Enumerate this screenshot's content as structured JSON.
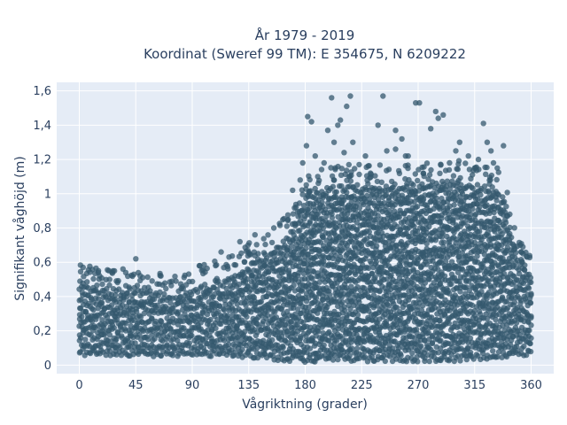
{
  "chart_data": {
    "type": "scatter",
    "title": "År 1979 - 2019",
    "subtitle": "Koordinat (Sweref 99 TM): E 354675, N 6209222",
    "xlabel": "Vågriktning (grader)",
    "ylabel": "Signifikant våghöjd (m)",
    "xlim": [
      -18,
      378
    ],
    "ylim": [
      -0.05,
      1.65
    ],
    "xticks": [
      0,
      45,
      90,
      135,
      180,
      225,
      270,
      315,
      360
    ],
    "xtick_labels": [
      "0",
      "45",
      "90",
      "135",
      "180",
      "225",
      "270",
      "315",
      "360"
    ],
    "yticks": [
      0,
      0.2,
      0.4,
      0.6,
      0.8,
      1.0,
      1.2,
      1.4,
      1.6
    ],
    "ytick_labels": [
      "0",
      "0,2",
      "0,4",
      "0,6",
      "0,8",
      "1",
      "1,2",
      "1,4",
      "1,6"
    ],
    "grid": true,
    "legend": "none",
    "marker_color": "#34586e",
    "marker_opacity": 0.75,
    "background_color": "#e5ecf6",
    "envelope": {
      "direction": [
        0,
        10,
        20,
        30,
        45,
        60,
        75,
        90,
        105,
        120,
        135,
        150,
        165,
        175,
        180,
        190,
        200,
        210,
        225,
        240,
        255,
        270,
        285,
        300,
        315,
        330,
        340,
        350,
        360
      ],
      "min_height": [
        0.06,
        0.05,
        0.05,
        0.05,
        0.05,
        0.05,
        0.05,
        0.05,
        0.05,
        0.04,
        0.04,
        0.03,
        0.02,
        0.02,
        0.01,
        0.02,
        0.02,
        0.02,
        0.02,
        0.02,
        0.02,
        0.02,
        0.02,
        0.02,
        0.03,
        0.03,
        0.04,
        0.05,
        0.06
      ],
      "max_height": [
        0.5,
        0.45,
        0.45,
        0.45,
        0.45,
        0.42,
        0.4,
        0.45,
        0.48,
        0.52,
        0.6,
        0.65,
        0.75,
        0.9,
        0.98,
        1.02,
        1.05,
        1.05,
        1.05,
        1.05,
        1.05,
        1.05,
        1.08,
        1.08,
        1.05,
        1.05,
        0.95,
        0.6,
        0.55
      ]
    },
    "outliers": [
      {
        "x": 45,
        "y": 0.62
      },
      {
        "x": 3,
        "y": 0.57
      },
      {
        "x": 28,
        "y": 0.55
      },
      {
        "x": 37,
        "y": 0.54
      },
      {
        "x": 65,
        "y": 0.52
      },
      {
        "x": 96,
        "y": 0.58
      },
      {
        "x": 113,
        "y": 0.66
      },
      {
        "x": 128,
        "y": 0.72
      },
      {
        "x": 140,
        "y": 0.76
      },
      {
        "x": 155,
        "y": 0.8
      },
      {
        "x": 170,
        "y": 1.02
      },
      {
        "x": 176,
        "y": 1.08
      },
      {
        "x": 178,
        "y": 1.18
      },
      {
        "x": 181,
        "y": 1.28
      },
      {
        "x": 182,
        "y": 1.45
      },
      {
        "x": 185,
        "y": 1.42
      },
      {
        "x": 188,
        "y": 1.22
      },
      {
        "x": 190,
        "y": 1.1
      },
      {
        "x": 195,
        "y": 1.18
      },
      {
        "x": 198,
        "y": 1.37
      },
      {
        "x": 201,
        "y": 1.56
      },
      {
        "x": 203,
        "y": 1.3
      },
      {
        "x": 206,
        "y": 1.4
      },
      {
        "x": 208,
        "y": 1.43
      },
      {
        "x": 211,
        "y": 1.24
      },
      {
        "x": 213,
        "y": 1.51
      },
      {
        "x": 216,
        "y": 1.57
      },
      {
        "x": 218,
        "y": 1.3
      },
      {
        "x": 223,
        "y": 1.17
      },
      {
        "x": 228,
        "y": 1.22
      },
      {
        "x": 232,
        "y": 1.12
      },
      {
        "x": 238,
        "y": 1.4
      },
      {
        "x": 242,
        "y": 1.57
      },
      {
        "x": 245,
        "y": 1.25
      },
      {
        "x": 252,
        "y": 1.37
      },
      {
        "x": 257,
        "y": 1.32
      },
      {
        "x": 260,
        "y": 1.22
      },
      {
        "x": 268,
        "y": 1.53
      },
      {
        "x": 271,
        "y": 1.53
      },
      {
        "x": 274,
        "y": 1.12
      },
      {
        "x": 280,
        "y": 1.38
      },
      {
        "x": 284,
        "y": 1.48
      },
      {
        "x": 286,
        "y": 1.44
      },
      {
        "x": 290,
        "y": 1.46
      },
      {
        "x": 295,
        "y": 1.18
      },
      {
        "x": 303,
        "y": 1.3
      },
      {
        "x": 310,
        "y": 1.22
      },
      {
        "x": 318,
        "y": 1.2
      },
      {
        "x": 322,
        "y": 1.41
      },
      {
        "x": 325,
        "y": 1.3
      },
      {
        "x": 328,
        "y": 1.25
      },
      {
        "x": 333,
        "y": 1.15
      },
      {
        "x": 338,
        "y": 1.28
      },
      {
        "x": 343,
        "y": 0.88
      },
      {
        "x": 347,
        "y": 0.68
      },
      {
        "x": 252,
        "y": 1.26
      },
      {
        "x": 262,
        "y": 1.22
      },
      {
        "x": 300,
        "y": 1.25
      },
      {
        "x": 315,
        "y": 1.15
      },
      {
        "x": 330,
        "y": 1.18
      }
    ]
  }
}
